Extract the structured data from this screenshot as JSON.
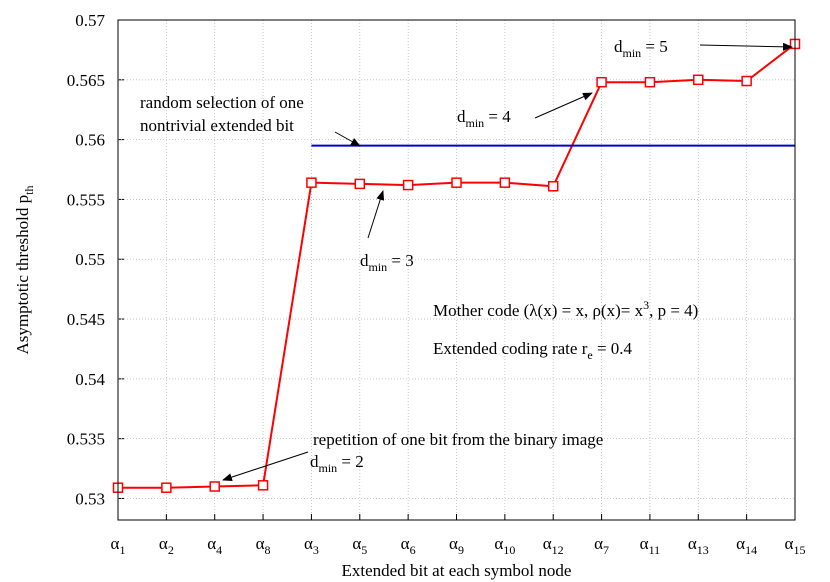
{
  "chart_data": {
    "type": "line",
    "x_label": "Extended bit at each symbol node",
    "y_label": {
      "pre": "Asymptotic threshold  p",
      "sub": "th"
    },
    "categories": [
      {
        "base": "α",
        "sub": "1"
      },
      {
        "base": "α",
        "sub": "2"
      },
      {
        "base": "α",
        "sub": "4"
      },
      {
        "base": "α",
        "sub": "8"
      },
      {
        "base": "α",
        "sub": "3"
      },
      {
        "base": "α",
        "sub": "5"
      },
      {
        "base": "α",
        "sub": "6"
      },
      {
        "base": "α",
        "sub": "9"
      },
      {
        "base": "α",
        "sub": "10"
      },
      {
        "base": "α",
        "sub": "12"
      },
      {
        "base": "α",
        "sub": "7"
      },
      {
        "base": "α",
        "sub": "11"
      },
      {
        "base": "α",
        "sub": "13"
      },
      {
        "base": "α",
        "sub": "14"
      },
      {
        "base": "α",
        "sub": "15"
      }
    ],
    "series": [
      {
        "color": "#ff0000",
        "marker": "square",
        "values": [
          0.5309,
          0.5309,
          0.531,
          0.5311,
          0.5564,
          0.5563,
          0.5562,
          0.5564,
          0.5564,
          0.5561,
          0.5648,
          0.5648,
          0.565,
          0.5649,
          0.568
        ]
      },
      {
        "color": "#0000cc",
        "values": [
          null,
          null,
          null,
          null,
          0.5595,
          0.5595,
          0.5595,
          0.5595,
          0.5595,
          0.5595,
          0.5595,
          0.5595,
          0.5595,
          0.5595,
          0.5595
        ]
      }
    ],
    "ylim": [
      0.5282,
      0.57
    ],
    "yticks": [
      0.53,
      0.535,
      0.54,
      0.545,
      0.55,
      0.555,
      0.56,
      0.565,
      0.57
    ],
    "grid": true,
    "annotations": [
      {
        "pre": "d",
        "sub": "min",
        "post": " = 5"
      },
      {
        "pre": "d",
        "sub": "min",
        "post": " = 4"
      },
      {
        "pre": "random selection of one"
      },
      {
        "pre": "nontrivial extended bit"
      },
      {
        "pre": "d",
        "sub": "min",
        "post": " = 3"
      },
      {
        "pre": "Mother code (λ(x) = x, ρ(x)= x",
        "sup": "3",
        "post": ", p = 4)"
      },
      {
        "pre": "Extended coding rate r",
        "sub": "e",
        "post": " = 0.4"
      },
      {
        "pre": "repetition of one bit from the binary image"
      },
      {
        "pre": "d",
        "sub": "min",
        "post": " = 2"
      }
    ]
  }
}
